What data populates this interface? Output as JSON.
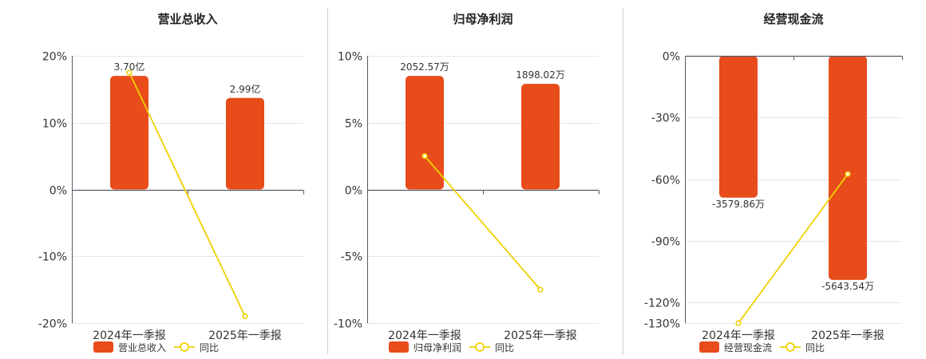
{
  "colors": {
    "bar": "#E84C1B",
    "line": "#F0D000",
    "grid": "#E4E6EE",
    "axis": "#555a66",
    "text": "#333333",
    "divider": "#cfcfcf"
  },
  "chart_data": [
    {
      "type": "bar",
      "title": "营业总收入",
      "categories": [
        "2024年一季报",
        "2025年一季报"
      ],
      "ylim": [
        -20,
        20
      ],
      "yticks": [
        20,
        10,
        0,
        -10,
        -20
      ],
      "ytick_labels": [
        "20%",
        "10%",
        "0%",
        "-10%",
        "-20%"
      ],
      "series": [
        {
          "name": "营业总收入",
          "kind": "bar",
          "values": [
            17,
            13.7
          ],
          "labels": [
            "3.70亿",
            "2.99亿"
          ]
        },
        {
          "name": "同比",
          "kind": "line",
          "values": [
            17.5,
            -19
          ]
        }
      ],
      "legend": "bottom"
    },
    {
      "type": "bar",
      "title": "归母净利润",
      "categories": [
        "2024年一季报",
        "2025年一季报"
      ],
      "ylim": [
        -10,
        10
      ],
      "yticks": [
        10,
        5,
        0,
        -5,
        -10
      ],
      "ytick_labels": [
        "10%",
        "5%",
        "0%",
        "-5%",
        "-10%"
      ],
      "series": [
        {
          "name": "归母净利润",
          "kind": "bar",
          "values": [
            8.5,
            7.9
          ],
          "labels": [
            "2052.57万",
            "1898.02万"
          ]
        },
        {
          "name": "同比",
          "kind": "line",
          "values": [
            2.5,
            -7.5
          ]
        }
      ],
      "legend": "bottom"
    },
    {
      "type": "bar",
      "title": "经营现金流",
      "categories": [
        "2024年一季报",
        "2025年一季报"
      ],
      "ylim": [
        -130,
        0
      ],
      "yticks": [
        0,
        -30,
        -60,
        -90,
        -120,
        -130
      ],
      "ytick_labels": [
        "0%",
        "-30%",
        "-60%",
        "-90%",
        "-120%",
        "-130%"
      ],
      "series": [
        {
          "name": "经营现金流",
          "kind": "bar",
          "values": [
            -69,
            -109
          ],
          "labels": [
            "-3579.86万",
            "-5643.54万"
          ]
        },
        {
          "name": "同比",
          "kind": "line",
          "values": [
            -130,
            -57.5
          ]
        }
      ],
      "legend": "bottom"
    }
  ]
}
